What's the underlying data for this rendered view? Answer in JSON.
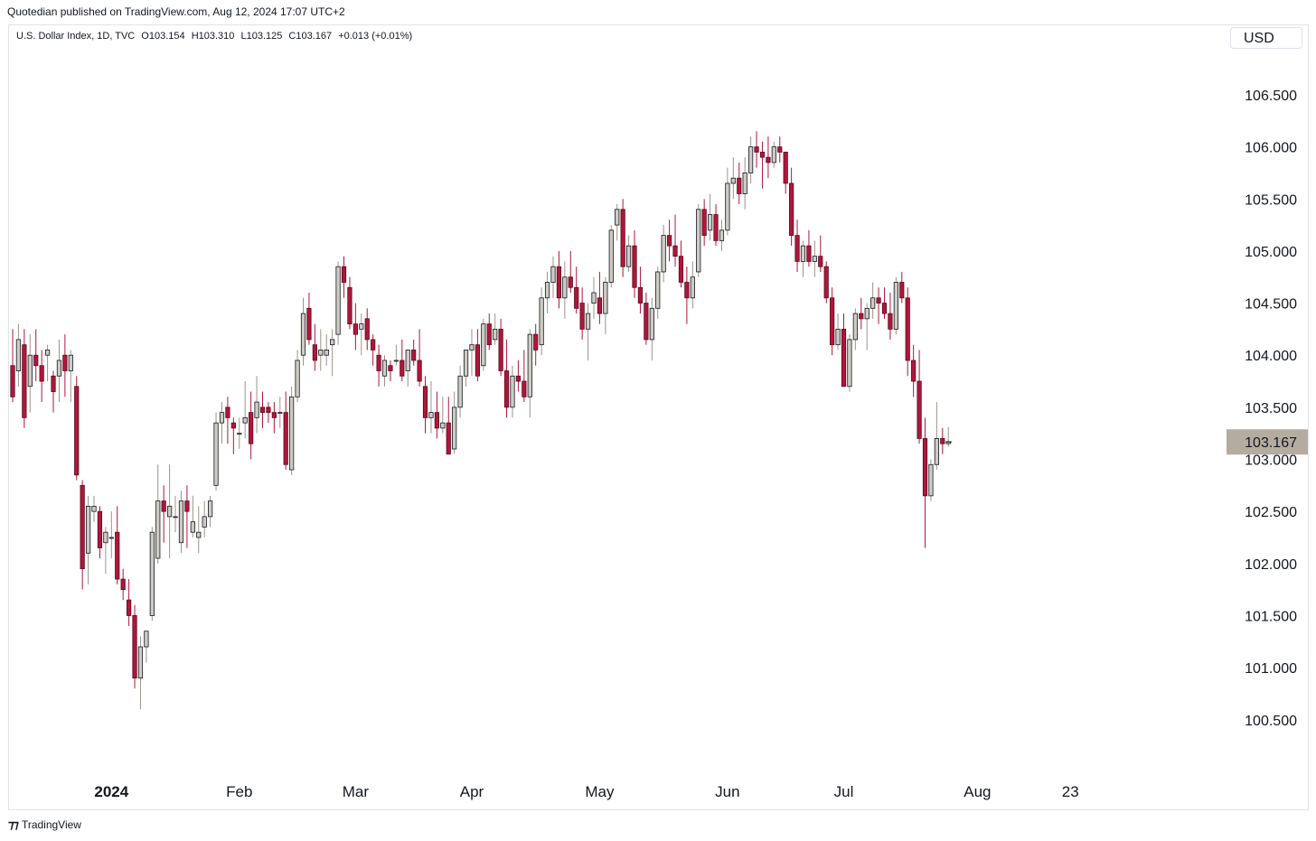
{
  "header": {
    "publish_line": "Quotedian published on TradingView.com, Aug 12, 2024 17:07 UTC+2"
  },
  "legend": {
    "symbol": "U.S. Dollar Index, 1D, TVC",
    "open": "O103.154",
    "high": "H103.310",
    "low": "L103.125",
    "close": "C103.167",
    "change": "+0.013 (+0.01%)"
  },
  "currency_label": "USD",
  "footer": {
    "brand": "TradingView"
  },
  "colors": {
    "up_body": "#cfccc4",
    "up_border": "#131722",
    "up_wick": "#9a9488",
    "down_body": "#b0163c",
    "down_border": "#5a0a1c",
    "down_wick": "#b0163c",
    "last_price_bg": "#b5aca0",
    "axis_text": "#131722"
  },
  "chart_data": {
    "type": "candlestick",
    "title": "U.S. Dollar Index",
    "ylim": [
      100.0,
      107.0
    ],
    "yticks": [
      "100.500",
      "101.000",
      "101.500",
      "102.000",
      "102.500",
      "103.000",
      "103.500",
      "104.000",
      "104.500",
      "105.000",
      "105.500",
      "106.000",
      "106.500",
      "107.000"
    ],
    "x_tick_labels": [
      {
        "label": "2024",
        "bar": 17
      },
      {
        "label": "Feb",
        "bar": 39
      },
      {
        "label": "Mar",
        "bar": 59
      },
      {
        "label": "Apr",
        "bar": 79
      },
      {
        "label": "May",
        "bar": 101
      },
      {
        "label": "Jun",
        "bar": 123
      },
      {
        "label": "Jul",
        "bar": 143
      },
      {
        "label": "Aug",
        "bar": 166
      },
      {
        "label": "23",
        "bar": 182
      }
    ],
    "last_price": "103.167",
    "last_value": 103.167,
    "ohlc": [
      [
        103.9,
        104.25,
        103.55,
        103.6
      ],
      [
        103.85,
        104.3,
        103.7,
        104.15
      ],
      [
        104.1,
        104.25,
        103.3,
        103.4
      ],
      [
        103.7,
        104.2,
        103.45,
        104.0
      ],
      [
        104.0,
        104.25,
        103.75,
        103.9
      ],
      [
        103.9,
        104.05,
        103.55,
        103.75
      ],
      [
        104.0,
        104.1,
        103.75,
        104.05
      ],
      [
        103.8,
        103.85,
        103.45,
        103.65
      ],
      [
        103.8,
        104.15,
        103.55,
        103.95
      ],
      [
        104.0,
        104.2,
        103.6,
        103.85
      ],
      [
        103.85,
        104.05,
        103.55,
        104.0
      ],
      [
        103.7,
        103.8,
        102.8,
        102.85
      ],
      [
        102.75,
        102.8,
        101.75,
        101.95
      ],
      [
        102.1,
        102.65,
        101.8,
        102.55
      ],
      [
        102.5,
        102.65,
        102.4,
        102.55
      ],
      [
        102.5,
        102.55,
        102.05,
        102.15
      ],
      [
        102.2,
        102.35,
        101.9,
        102.3
      ],
      [
        102.25,
        102.5,
        102.05,
        102.25
      ],
      [
        102.3,
        102.55,
        101.8,
        101.85
      ],
      [
        101.85,
        101.95,
        101.65,
        101.75
      ],
      [
        101.65,
        101.85,
        101.4,
        101.5
      ],
      [
        101.5,
        101.6,
        100.8,
        100.9
      ],
      [
        100.9,
        101.3,
        100.6,
        101.2
      ],
      [
        101.2,
        101.35,
        101.05,
        101.35
      ],
      [
        101.5,
        102.35,
        101.45,
        102.3
      ],
      [
        102.05,
        102.95,
        102.0,
        102.6
      ],
      [
        102.6,
        102.75,
        102.2,
        102.5
      ],
      [
        102.45,
        102.95,
        102.05,
        102.55
      ],
      [
        102.45,
        102.65,
        102.3,
        102.45
      ],
      [
        102.2,
        102.7,
        102.1,
        102.6
      ],
      [
        102.6,
        102.75,
        102.15,
        102.5
      ],
      [
        102.3,
        102.65,
        102.25,
        102.4
      ],
      [
        102.25,
        102.55,
        102.1,
        102.3
      ],
      [
        102.35,
        102.6,
        102.25,
        102.45
      ],
      [
        102.45,
        102.65,
        102.35,
        102.6
      ],
      [
        102.75,
        103.45,
        102.7,
        103.35
      ],
      [
        103.35,
        103.55,
        103.15,
        103.45
      ],
      [
        103.5,
        103.6,
        103.15,
        103.4
      ],
      [
        103.35,
        103.4,
        103.05,
        103.3
      ],
      [
        103.25,
        103.4,
        103.1,
        103.25
      ],
      [
        103.35,
        103.75,
        103.2,
        103.4
      ],
      [
        103.45,
        103.65,
        103.0,
        103.15
      ],
      [
        103.4,
        103.8,
        103.25,
        103.55
      ],
      [
        103.5,
        103.65,
        103.3,
        103.45
      ],
      [
        103.5,
        103.55,
        103.35,
        103.45
      ],
      [
        103.45,
        103.55,
        103.25,
        103.4
      ],
      [
        103.45,
        103.6,
        103.3,
        103.45
      ],
      [
        103.45,
        103.65,
        102.9,
        102.95
      ],
      [
        102.9,
        103.7,
        102.85,
        103.6
      ],
      [
        103.6,
        104.05,
        103.55,
        103.95
      ],
      [
        104.0,
        104.55,
        103.9,
        104.4
      ],
      [
        104.45,
        104.6,
        104.1,
        104.15
      ],
      [
        104.1,
        104.3,
        103.85,
        103.95
      ],
      [
        104.0,
        104.25,
        103.85,
        104.05
      ],
      [
        104.0,
        104.2,
        103.9,
        104.05
      ],
      [
        104.1,
        104.25,
        103.8,
        104.15
      ],
      [
        104.2,
        104.9,
        104.1,
        104.85
      ],
      [
        104.85,
        104.95,
        104.55,
        104.7
      ],
      [
        104.65,
        104.75,
        104.25,
        104.3
      ],
      [
        104.3,
        104.5,
        104.05,
        104.2
      ],
      [
        104.25,
        104.4,
        104.0,
        104.3
      ],
      [
        104.35,
        104.45,
        104.05,
        104.15
      ],
      [
        104.15,
        104.2,
        103.9,
        104.05
      ],
      [
        104.0,
        104.1,
        103.7,
        103.85
      ],
      [
        103.8,
        104.0,
        103.7,
        103.95
      ],
      [
        103.9,
        103.95,
        103.75,
        103.85
      ],
      [
        103.95,
        104.1,
        103.9,
        103.95
      ],
      [
        103.95,
        104.15,
        103.75,
        103.8
      ],
      [
        103.85,
        104.05,
        103.7,
        104.05
      ],
      [
        104.05,
        104.15,
        103.9,
        103.95
      ],
      [
        103.95,
        104.25,
        103.7,
        103.75
      ],
      [
        103.7,
        103.8,
        103.25,
        103.4
      ],
      [
        103.4,
        103.75,
        103.25,
        103.45
      ],
      [
        103.45,
        103.65,
        103.2,
        103.3
      ],
      [
        103.3,
        103.6,
        103.25,
        103.35
      ],
      [
        103.35,
        103.6,
        103.1,
        103.05
      ],
      [
        103.1,
        103.65,
        103.05,
        103.5
      ],
      [
        103.5,
        103.9,
        103.4,
        103.8
      ],
      [
        103.8,
        104.05,
        103.7,
        104.05
      ],
      [
        104.05,
        104.25,
        103.8,
        104.1
      ],
      [
        104.1,
        104.25,
        103.75,
        103.8
      ],
      [
        103.9,
        104.35,
        103.85,
        104.3
      ],
      [
        104.3,
        104.4,
        104.05,
        104.1
      ],
      [
        104.15,
        104.4,
        104.1,
        104.25
      ],
      [
        104.25,
        104.35,
        103.8,
        103.85
      ],
      [
        103.85,
        104.15,
        103.4,
        103.5
      ],
      [
        103.5,
        103.9,
        103.4,
        103.8
      ],
      [
        103.8,
        103.95,
        103.65,
        103.75
      ],
      [
        103.75,
        104.05,
        103.55,
        103.6
      ],
      [
        103.6,
        104.25,
        103.4,
        104.2
      ],
      [
        104.2,
        104.3,
        103.9,
        104.05
      ],
      [
        104.1,
        104.65,
        104.0,
        104.55
      ],
      [
        104.55,
        104.8,
        104.4,
        104.7
      ],
      [
        104.7,
        104.95,
        104.55,
        104.85
      ],
      [
        104.85,
        105.0,
        104.45,
        104.55
      ],
      [
        104.55,
        104.9,
        104.35,
        104.75
      ],
      [
        104.75,
        105.0,
        104.6,
        104.65
      ],
      [
        104.65,
        104.85,
        104.4,
        104.45
      ],
      [
        104.5,
        104.65,
        104.15,
        104.25
      ],
      [
        104.25,
        104.5,
        103.95,
        104.4
      ],
      [
        104.5,
        104.75,
        104.35,
        104.6
      ],
      [
        104.55,
        104.8,
        104.3,
        104.4
      ],
      [
        104.4,
        104.75,
        104.2,
        104.7
      ],
      [
        104.7,
        105.25,
        104.65,
        105.2
      ],
      [
        105.25,
        105.45,
        105.1,
        105.4
      ],
      [
        105.4,
        105.5,
        104.75,
        104.85
      ],
      [
        104.85,
        105.15,
        104.8,
        105.05
      ],
      [
        105.05,
        105.2,
        104.55,
        104.65
      ],
      [
        104.65,
        104.85,
        104.4,
        104.5
      ],
      [
        104.5,
        104.6,
        104.1,
        104.15
      ],
      [
        104.15,
        104.55,
        103.95,
        104.45
      ],
      [
        104.45,
        104.85,
        104.35,
        104.8
      ],
      [
        104.8,
        105.25,
        104.7,
        105.15
      ],
      [
        105.15,
        105.3,
        104.9,
        105.05
      ],
      [
        105.05,
        105.35,
        104.85,
        104.95
      ],
      [
        104.95,
        105.1,
        104.65,
        104.7
      ],
      [
        104.7,
        104.85,
        104.3,
        104.55
      ],
      [
        104.55,
        104.9,
        104.45,
        104.75
      ],
      [
        104.8,
        105.45,
        104.75,
        105.4
      ],
      [
        105.4,
        105.5,
        105.05,
        105.15
      ],
      [
        105.2,
        105.55,
        105.1,
        105.35
      ],
      [
        105.35,
        105.45,
        105.05,
        105.1
      ],
      [
        105.1,
        105.3,
        105.0,
        105.2
      ],
      [
        105.2,
        105.8,
        105.15,
        105.65
      ],
      [
        105.65,
        105.9,
        105.5,
        105.7
      ],
      [
        105.7,
        105.85,
        105.45,
        105.55
      ],
      [
        105.55,
        105.9,
        105.4,
        105.75
      ],
      [
        105.75,
        106.1,
        105.65,
        106.0
      ],
      [
        106.0,
        106.15,
        105.8,
        105.95
      ],
      [
        105.95,
        106.05,
        105.6,
        105.9
      ],
      [
        105.9,
        106.1,
        105.7,
        105.85
      ],
      [
        105.85,
        106.05,
        105.8,
        106.0
      ],
      [
        106.0,
        106.1,
        105.85,
        105.95
      ],
      [
        105.95,
        105.95,
        105.55,
        105.65
      ],
      [
        105.65,
        105.8,
        105.05,
        105.15
      ],
      [
        105.15,
        105.3,
        104.8,
        104.9
      ],
      [
        104.9,
        105.1,
        104.75,
        105.05
      ],
      [
        105.05,
        105.2,
        104.85,
        104.9
      ],
      [
        104.9,
        105.1,
        104.75,
        104.95
      ],
      [
        104.95,
        105.15,
        104.8,
        104.85
      ],
      [
        104.85,
        104.9,
        104.5,
        104.55
      ],
      [
        104.55,
        104.65,
        104.0,
        104.1
      ],
      [
        104.1,
        104.4,
        104.05,
        104.25
      ],
      [
        104.25,
        104.4,
        103.7,
        103.7
      ],
      [
        103.7,
        104.2,
        103.65,
        104.15
      ],
      [
        104.15,
        104.45,
        104.05,
        104.4
      ],
      [
        104.4,
        104.55,
        104.25,
        104.35
      ],
      [
        104.35,
        104.5,
        104.05,
        104.45
      ],
      [
        104.45,
        104.7,
        104.35,
        104.55
      ],
      [
        104.55,
        104.65,
        104.3,
        104.5
      ],
      [
        104.5,
        104.65,
        104.35,
        104.4
      ],
      [
        104.4,
        104.6,
        104.15,
        104.25
      ],
      [
        104.25,
        104.75,
        104.2,
        104.7
      ],
      [
        104.7,
        104.8,
        104.5,
        104.55
      ],
      [
        104.55,
        104.65,
        103.8,
        103.95
      ],
      [
        103.95,
        104.1,
        103.6,
        103.75
      ],
      [
        103.75,
        104.05,
        103.15,
        103.2
      ],
      [
        103.2,
        103.4,
        102.15,
        102.65
      ],
      [
        102.65,
        103.0,
        102.6,
        102.95
      ],
      [
        102.95,
        103.55,
        102.9,
        103.2
      ],
      [
        103.2,
        103.3,
        103.05,
        103.15
      ],
      [
        103.15,
        103.31,
        103.12,
        103.17
      ]
    ]
  }
}
